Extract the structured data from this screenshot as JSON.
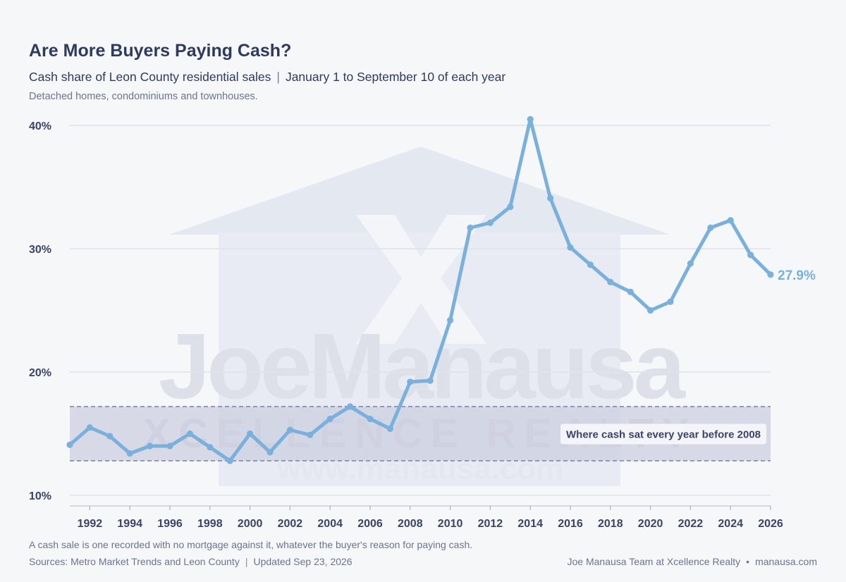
{
  "header": {
    "title": "Are More Buyers Paying Cash?",
    "subtitle_main": "Cash share of Leon County residential sales",
    "subtitle_sep": "|",
    "subtitle_range": "January 1 to September 10 of each year",
    "note": "Detached homes, condominiums and townhouses."
  },
  "footer": {
    "definition": "A cash sale is one recorded with no mortgage against it, whatever the buyer's reason for paying cash.",
    "sources": "Sources: Metro Market Trends and Leon County",
    "sources_sep": "|",
    "updated": "Updated Sep 23, 2026",
    "credit": "Joe Manausa Team at Xcellence Realty",
    "credit_sep": "•",
    "site": "manausa.com"
  },
  "watermark": {
    "name": "JoeManausa",
    "brand": "XCELLENCE REALTY",
    "url": "www.manausa.com"
  },
  "colors": {
    "line": "#7ab0dc",
    "band": "#cacdde",
    "grid": "#dfe2e9",
    "axis_text": "#3a4468",
    "title": "#2e3a5e"
  },
  "chart_data": {
    "type": "line",
    "x": [
      1991,
      1992,
      1993,
      1994,
      1995,
      1996,
      1997,
      1998,
      1999,
      2000,
      2001,
      2002,
      2003,
      2004,
      2005,
      2006,
      2007,
      2008,
      2009,
      2010,
      2011,
      2012,
      2013,
      2014,
      2015,
      2016,
      2017,
      2018,
      2019,
      2020,
      2021,
      2022,
      2023,
      2024,
      2025,
      2026
    ],
    "series": [
      {
        "values": [
          14.1,
          15.5,
          14.8,
          13.4,
          14.0,
          14.0,
          15.0,
          13.9,
          12.8,
          15.0,
          13.5,
          15.3,
          14.9,
          16.2,
          17.2,
          16.2,
          15.4,
          19.2,
          19.3,
          24.2,
          31.7,
          32.1,
          33.4,
          40.5,
          34.1,
          30.1,
          28.7,
          27.3,
          26.5,
          25.0,
          25.7,
          28.8,
          31.7,
          32.3,
          29.5,
          27.9
        ]
      }
    ],
    "end_label": "27.9%",
    "band": {
      "low": 12.8,
      "high": 17.2,
      "label": "Where cash sat every year before 2008"
    },
    "y_ticks": [
      "10%",
      "20%",
      "30%",
      "40%"
    ],
    "y_tick_values": [
      10,
      20,
      30,
      40
    ],
    "x_ticks": [
      1992,
      1994,
      1996,
      1998,
      2000,
      2002,
      2004,
      2006,
      2008,
      2010,
      2012,
      2014,
      2016,
      2018,
      2020,
      2022,
      2024,
      2026
    ],
    "ylim": [
      9.2,
      41
    ],
    "xlim": [
      1991,
      2026
    ],
    "grid": true,
    "legend": "none"
  }
}
